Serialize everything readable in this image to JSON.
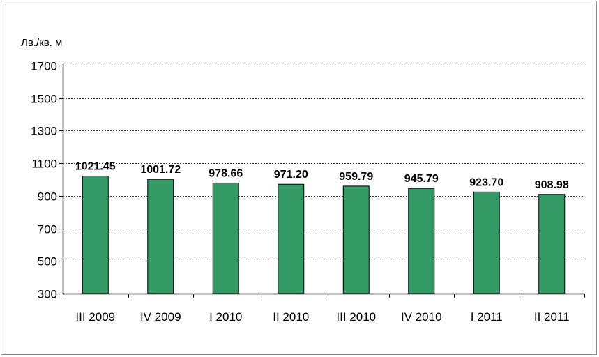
{
  "chart_data": {
    "type": "bar",
    "ylabel": "Лв./кв. м",
    "ylim": [
      300,
      1700
    ],
    "yticks": [
      300,
      500,
      700,
      900,
      1100,
      1300,
      1500,
      1700
    ],
    "grid": "horizontal dashed",
    "categories": [
      "III 2009",
      "IV 2009",
      "I 2010",
      "II 2010",
      "III 2010",
      "IV 2010",
      "I 2011",
      "II 2011"
    ],
    "values": [
      1021.45,
      1001.72,
      978.66,
      971.2,
      959.79,
      945.79,
      923.7,
      908.98
    ],
    "value_labels": [
      "1021.45",
      "1001.72",
      "978.66",
      "971.20",
      "959.79",
      "945.79",
      "923.70",
      "908.98"
    ],
    "bar_color": "#339966"
  }
}
